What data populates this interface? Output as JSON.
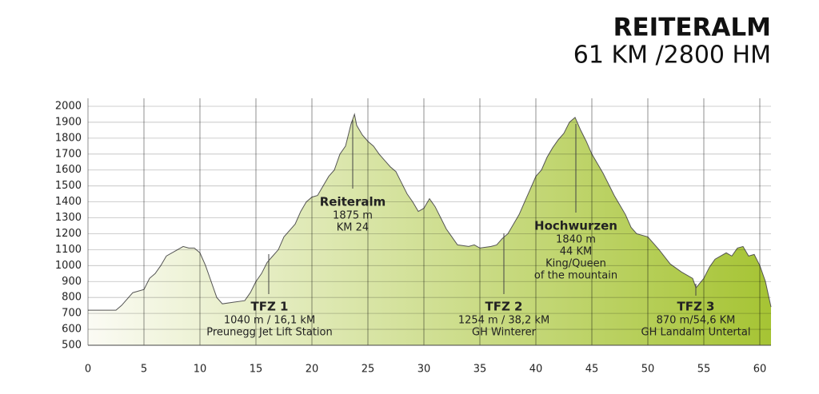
{
  "chart_data": {
    "type": "area",
    "title": "REITERALM",
    "subtitle": "61 KM /2800 HM",
    "x": [
      0,
      2.5,
      3,
      3.5,
      4,
      5,
      5.5,
      6,
      6.5,
      7,
      8,
      8.5,
      9,
      9.5,
      10,
      10.5,
      11,
      11.5,
      12,
      13,
      14,
      14.5,
      15,
      15.5,
      16,
      16.5,
      17,
      17.5,
      18,
      18.5,
      19,
      19.5,
      20,
      20.5,
      21,
      21.5,
      22,
      22.5,
      23,
      23.5,
      23.8,
      24,
      24.5,
      25,
      25.5,
      26,
      26.5,
      27,
      27.5,
      28,
      28.5,
      29,
      29.5,
      30,
      30.5,
      31,
      31.5,
      32,
      32.5,
      33,
      34,
      34.5,
      35,
      36,
      36.5,
      37,
      37.5,
      38,
      38.5,
      39,
      39.5,
      40,
      40.5,
      41,
      41.5,
      42,
      42.5,
      43,
      43.5,
      44,
      44.5,
      45,
      46,
      47,
      48,
      48.5,
      49,
      50,
      51,
      52,
      53,
      54,
      54.3,
      55,
      55.5,
      56,
      57,
      57.5,
      58,
      58.5,
      59,
      59.5,
      60,
      60.5,
      61
    ],
    "values": [
      720,
      720,
      750,
      790,
      830,
      850,
      920,
      950,
      1000,
      1060,
      1100,
      1120,
      1110,
      1110,
      1080,
      1000,
      900,
      800,
      760,
      770,
      780,
      830,
      900,
      950,
      1020,
      1060,
      1100,
      1180,
      1220,
      1260,
      1340,
      1400,
      1430,
      1440,
      1500,
      1560,
      1600,
      1700,
      1750,
      1890,
      1950,
      1880,
      1820,
      1780,
      1750,
      1700,
      1660,
      1620,
      1590,
      1520,
      1450,
      1400,
      1340,
      1360,
      1420,
      1370,
      1300,
      1230,
      1180,
      1130,
      1120,
      1130,
      1110,
      1120,
      1130,
      1170,
      1200,
      1260,
      1320,
      1400,
      1480,
      1560,
      1600,
      1680,
      1740,
      1790,
      1830,
      1900,
      1930,
      1850,
      1780,
      1700,
      1580,
      1440,
      1320,
      1240,
      1200,
      1180,
      1100,
      1010,
      960,
      920,
      860,
      920,
      990,
      1040,
      1080,
      1060,
      1110,
      1120,
      1060,
      1070,
      1000,
      900,
      740
    ],
    "colors": [
      "#fbfbf4",
      "#a6c434"
    ],
    "xlim": [
      0,
      61
    ],
    "ylim": [
      500,
      2000
    ],
    "xticks": [
      0,
      5,
      10,
      15,
      20,
      25,
      30,
      35,
      40,
      45,
      50,
      55,
      60
    ],
    "yticks": [
      500,
      600,
      700,
      800,
      900,
      1000,
      1100,
      1200,
      1300,
      1400,
      1500,
      1600,
      1700,
      1800,
      1900,
      2000
    ],
    "grid": true,
    "annotations": [
      {
        "title": "TFZ 1",
        "lines": [
          "1040 m / 16,1 kM",
          "Preunegg Jet Lift Station"
        ]
      },
      {
        "title": "Reiteralm",
        "lines": [
          "1875 m",
          "KM 24"
        ]
      },
      {
        "title": "TFZ 2",
        "lines": [
          "1254 m / 38,2 kM",
          "GH Winterer"
        ]
      },
      {
        "title": "Hochwurzen",
        "lines": [
          "1840 m",
          "44 KM",
          "King/Queen",
          "of the mountain"
        ]
      },
      {
        "title": "TFZ 3",
        "lines": [
          "870 m/54,6 KM",
          "GH Landalm Untertal"
        ]
      }
    ]
  }
}
